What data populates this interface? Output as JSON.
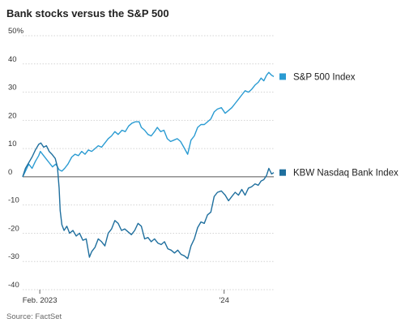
{
  "chart_data": {
    "type": "line",
    "title": "Bank stocks versus the S&P 500",
    "source": "Source: FactSet",
    "ylim": [
      -40,
      50
    ],
    "y_ticks": [
      50,
      40,
      30,
      20,
      10,
      0,
      -10,
      -20,
      -30,
      -40
    ],
    "y_tick_labels": [
      "50%",
      "40",
      "30",
      "20",
      "10",
      "0",
      "-10",
      "-20",
      "-30",
      "-40"
    ],
    "x_range": [
      "2023-01-01",
      "2024-03-31"
    ],
    "x_ticks": [
      {
        "date": "2023-02-01",
        "label": "Feb. 2023"
      },
      {
        "date": "2024-01-01",
        "label": "'24"
      }
    ],
    "grid": true,
    "zero_line": true,
    "legend_placement": "right, beside line ends",
    "series": [
      {
        "name": "S&P 500 Index",
        "color": "#2a9bd2",
        "marker": "square",
        "points": [
          [
            "2023-01-01",
            0.0
          ],
          [
            "2023-01-06",
            2.0
          ],
          [
            "2023-01-12",
            4.5
          ],
          [
            "2023-01-18",
            3.0
          ],
          [
            "2023-01-24",
            5.5
          ],
          [
            "2023-01-30",
            7.5
          ],
          [
            "2023-02-02",
            9.0
          ],
          [
            "2023-02-06",
            8.0
          ],
          [
            "2023-02-12",
            6.5
          ],
          [
            "2023-02-18",
            5.0
          ],
          [
            "2023-02-24",
            3.5
          ],
          [
            "2023-03-02",
            4.5
          ],
          [
            "2023-03-08",
            2.5
          ],
          [
            "2023-03-13",
            2.0
          ],
          [
            "2023-03-18",
            3.0
          ],
          [
            "2023-03-24",
            4.5
          ],
          [
            "2023-03-31",
            7.0
          ],
          [
            "2023-04-06",
            8.0
          ],
          [
            "2023-04-12",
            7.5
          ],
          [
            "2023-04-18",
            9.0
          ],
          [
            "2023-04-24",
            8.0
          ],
          [
            "2023-04-30",
            9.5
          ],
          [
            "2023-05-06",
            9.0
          ],
          [
            "2023-05-12",
            10.0
          ],
          [
            "2023-05-18",
            11.0
          ],
          [
            "2023-05-24",
            10.5
          ],
          [
            "2023-05-30",
            12.0
          ],
          [
            "2023-06-05",
            13.5
          ],
          [
            "2023-06-11",
            14.5
          ],
          [
            "2023-06-17",
            16.0
          ],
          [
            "2023-06-23",
            15.0
          ],
          [
            "2023-06-30",
            16.5
          ],
          [
            "2023-07-06",
            16.0
          ],
          [
            "2023-07-12",
            18.0
          ],
          [
            "2023-07-18",
            19.0
          ],
          [
            "2023-07-24",
            19.5
          ],
          [
            "2023-07-31",
            19.5
          ],
          [
            "2023-08-04",
            17.5
          ],
          [
            "2023-08-10",
            16.5
          ],
          [
            "2023-08-16",
            15.0
          ],
          [
            "2023-08-22",
            14.5
          ],
          [
            "2023-08-28",
            16.0
          ],
          [
            "2023-09-02",
            17.5
          ],
          [
            "2023-09-08",
            16.0
          ],
          [
            "2023-09-14",
            16.5
          ],
          [
            "2023-09-20",
            13.5
          ],
          [
            "2023-09-26",
            12.5
          ],
          [
            "2023-10-02",
            13.0
          ],
          [
            "2023-10-08",
            13.5
          ],
          [
            "2023-10-14",
            12.5
          ],
          [
            "2023-10-20",
            10.5
          ],
          [
            "2023-10-27",
            8.0
          ],
          [
            "2023-11-02",
            13.0
          ],
          [
            "2023-11-08",
            14.5
          ],
          [
            "2023-11-14",
            17.5
          ],
          [
            "2023-11-20",
            18.5
          ],
          [
            "2023-11-26",
            18.5
          ],
          [
            "2023-12-02",
            19.5
          ],
          [
            "2023-12-08",
            20.5
          ],
          [
            "2023-12-14",
            23.0
          ],
          [
            "2023-12-20",
            24.0
          ],
          [
            "2023-12-27",
            24.5
          ],
          [
            "2024-01-03",
            22.5
          ],
          [
            "2024-01-09",
            23.5
          ],
          [
            "2024-01-15",
            24.5
          ],
          [
            "2024-01-21",
            26.0
          ],
          [
            "2024-01-27",
            27.5
          ],
          [
            "2024-02-02",
            29.0
          ],
          [
            "2024-02-08",
            30.5
          ],
          [
            "2024-02-14",
            30.0
          ],
          [
            "2024-02-20",
            31.0
          ],
          [
            "2024-02-26",
            32.5
          ],
          [
            "2024-03-03",
            33.5
          ],
          [
            "2024-03-08",
            35.0
          ],
          [
            "2024-03-13",
            34.0
          ],
          [
            "2024-03-18",
            36.0
          ],
          [
            "2024-03-22",
            37.0
          ],
          [
            "2024-03-27",
            36.0
          ],
          [
            "2024-03-31",
            35.5
          ]
        ]
      },
      {
        "name": "KBW Nasdaq Bank Index",
        "color": "#1f6f9e",
        "marker": "square",
        "points": [
          [
            "2023-01-01",
            0.0
          ],
          [
            "2023-01-06",
            3.0
          ],
          [
            "2023-01-12",
            5.0
          ],
          [
            "2023-01-18",
            7.0
          ],
          [
            "2023-01-24",
            9.5
          ],
          [
            "2023-01-30",
            11.5
          ],
          [
            "2023-02-03",
            12.0
          ],
          [
            "2023-02-08",
            10.5
          ],
          [
            "2023-02-13",
            11.0
          ],
          [
            "2023-02-18",
            9.0
          ],
          [
            "2023-02-23",
            8.0
          ],
          [
            "2023-03-01",
            6.5
          ],
          [
            "2023-03-05",
            3.5
          ],
          [
            "2023-03-08",
            -4.0
          ],
          [
            "2023-03-10",
            -12.0
          ],
          [
            "2023-03-13",
            -17.0
          ],
          [
            "2023-03-17",
            -19.0
          ],
          [
            "2023-03-22",
            -17.5
          ],
          [
            "2023-03-27",
            -20.0
          ],
          [
            "2023-04-02",
            -19.0
          ],
          [
            "2023-04-08",
            -21.0
          ],
          [
            "2023-04-14",
            -20.0
          ],
          [
            "2023-04-20",
            -22.5
          ],
          [
            "2023-04-26",
            -22.0
          ],
          [
            "2023-05-02",
            -28.5
          ],
          [
            "2023-05-06",
            -26.5
          ],
          [
            "2023-05-12",
            -25.0
          ],
          [
            "2023-05-18",
            -22.0
          ],
          [
            "2023-05-24",
            -23.0
          ],
          [
            "2023-05-30",
            -24.5
          ],
          [
            "2023-06-05",
            -20.0
          ],
          [
            "2023-06-11",
            -18.5
          ],
          [
            "2023-06-17",
            -15.5
          ],
          [
            "2023-06-23",
            -16.5
          ],
          [
            "2023-06-29",
            -19.0
          ],
          [
            "2023-07-05",
            -18.5
          ],
          [
            "2023-07-11",
            -19.5
          ],
          [
            "2023-07-17",
            -20.5
          ],
          [
            "2023-07-23",
            -19.0
          ],
          [
            "2023-07-29",
            -16.5
          ],
          [
            "2023-08-04",
            -17.5
          ],
          [
            "2023-08-10",
            -22.0
          ],
          [
            "2023-08-16",
            -21.5
          ],
          [
            "2023-08-22",
            -23.0
          ],
          [
            "2023-08-28",
            -22.0
          ],
          [
            "2023-09-03",
            -23.5
          ],
          [
            "2023-09-09",
            -24.0
          ],
          [
            "2023-09-15",
            -23.0
          ],
          [
            "2023-09-21",
            -25.5
          ],
          [
            "2023-09-27",
            -26.0
          ],
          [
            "2023-10-03",
            -27.0
          ],
          [
            "2023-10-09",
            -26.0
          ],
          [
            "2023-10-15",
            -27.5
          ],
          [
            "2023-10-21",
            -28.0
          ],
          [
            "2023-10-27",
            -29.0
          ],
          [
            "2023-11-02",
            -24.5
          ],
          [
            "2023-11-08",
            -22.0
          ],
          [
            "2023-11-14",
            -18.0
          ],
          [
            "2023-11-20",
            -16.0
          ],
          [
            "2023-11-26",
            -16.5
          ],
          [
            "2023-12-02",
            -13.5
          ],
          [
            "2023-12-08",
            -12.5
          ],
          [
            "2023-12-14",
            -7.0
          ],
          [
            "2023-12-20",
            -5.5
          ],
          [
            "2023-12-27",
            -5.0
          ],
          [
            "2024-01-03",
            -6.5
          ],
          [
            "2024-01-09",
            -8.5
          ],
          [
            "2024-01-15",
            -7.0
          ],
          [
            "2024-01-21",
            -5.5
          ],
          [
            "2024-01-27",
            -6.5
          ],
          [
            "2024-02-02",
            -4.5
          ],
          [
            "2024-02-08",
            -6.5
          ],
          [
            "2024-02-14",
            -4.0
          ],
          [
            "2024-02-20",
            -3.5
          ],
          [
            "2024-02-26",
            -2.5
          ],
          [
            "2024-03-03",
            -3.0
          ],
          [
            "2024-03-08",
            -1.5
          ],
          [
            "2024-03-13",
            -1.0
          ],
          [
            "2024-03-18",
            0.5
          ],
          [
            "2024-03-22",
            3.0
          ],
          [
            "2024-03-27",
            1.0
          ],
          [
            "2024-03-31",
            1.5
          ]
        ]
      }
    ]
  }
}
